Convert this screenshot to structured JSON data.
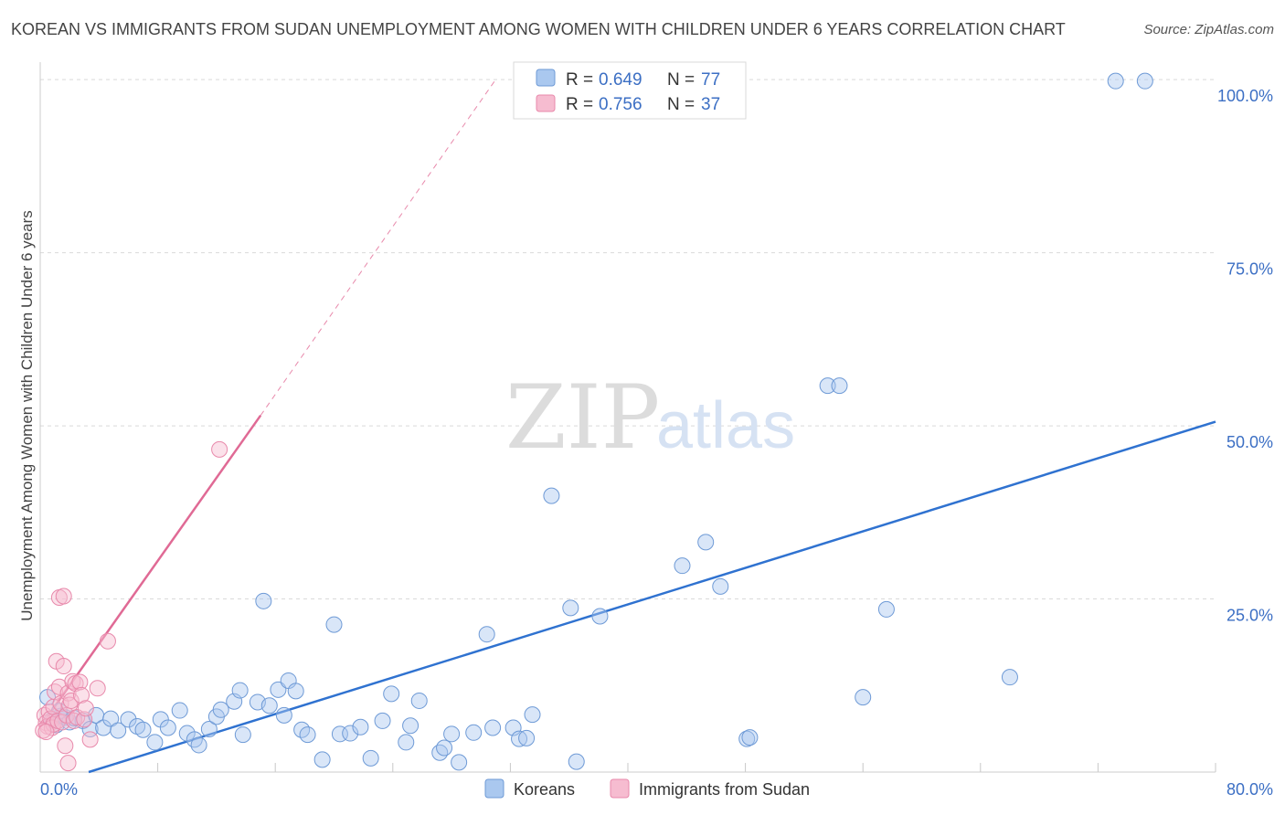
{
  "title": "KOREAN VS IMMIGRANTS FROM SUDAN UNEMPLOYMENT AMONG WOMEN WITH CHILDREN UNDER 6 YEARS CORRELATION CHART",
  "source": "Source: ZipAtlas.com",
  "watermark": {
    "zip": "ZIP",
    "atlas": "atlas"
  },
  "colors": {
    "korean_fill": "#aac8ef",
    "korean_stroke": "#6e9ad6",
    "korean_line": "#2f72d0",
    "sudan_fill": "#f6bcd0",
    "sudan_stroke": "#e889ab",
    "sudan_line": "#e06a95",
    "tick": "#3c6fc4",
    "grid": "#d9d9d9"
  },
  "legend": {
    "rows": [
      {
        "r_label": "R = ",
        "r_value": "0.649",
        "n_label": "N = ",
        "n_value": "77"
      },
      {
        "r_label": "R = ",
        "r_value": "0.756",
        "n_label": "N = ",
        "n_value": "37"
      }
    ],
    "bottom": [
      "Koreans",
      "Immigrants from Sudan"
    ]
  },
  "chart_data": {
    "type": "scatter",
    "title": "KOREAN VS IMMIGRANTS FROM SUDAN UNEMPLOYMENT AMONG WOMEN WITH CHILDREN UNDER 6 YEARS CORRELATION CHART",
    "xlabel": "",
    "ylabel": "Unemployment Among Women with Children Under 6 years",
    "xlim": [
      0,
      80
    ],
    "ylim": [
      0,
      102
    ],
    "x_tick_labels": [
      "0.0%",
      "80.0%"
    ],
    "y_ticks": [
      25,
      50,
      75,
      100
    ],
    "y_tick_labels": [
      "25.0%",
      "50.0%",
      "75.0%",
      "100.0%"
    ],
    "grid": true,
    "legend_position": "top-center",
    "series": [
      {
        "name": "Koreans",
        "r": 0.649,
        "n": 77,
        "trend": {
          "x": [
            3.3,
            80
          ],
          "y": [
            0,
            50.6
          ]
        },
        "points": [
          [
            0.5,
            10.8
          ],
          [
            0.8,
            7.5
          ],
          [
            1.1,
            6.8
          ],
          [
            1.4,
            8.1
          ],
          [
            1.7,
            7.9
          ],
          [
            2.0,
            7.2
          ],
          [
            2.3,
            7.8
          ],
          [
            2.9,
            7.4
          ],
          [
            3.4,
            6.2
          ],
          [
            3.8,
            8.2
          ],
          [
            4.3,
            6.4
          ],
          [
            4.8,
            7.7
          ],
          [
            5.3,
            6.0
          ],
          [
            6.0,
            7.6
          ],
          [
            6.6,
            6.6
          ],
          [
            7.0,
            6.1
          ],
          [
            7.8,
            4.3
          ],
          [
            8.2,
            7.6
          ],
          [
            8.7,
            6.4
          ],
          [
            9.5,
            8.9
          ],
          [
            10.0,
            5.6
          ],
          [
            10.5,
            4.7
          ],
          [
            10.8,
            3.9
          ],
          [
            11.5,
            6.2
          ],
          [
            12.0,
            8.0
          ],
          [
            12.3,
            9.0
          ],
          [
            13.2,
            10.2
          ],
          [
            13.6,
            11.8
          ],
          [
            13.8,
            5.4
          ],
          [
            14.8,
            10.1
          ],
          [
            15.2,
            24.7
          ],
          [
            15.6,
            9.6
          ],
          [
            16.2,
            11.9
          ],
          [
            16.6,
            8.2
          ],
          [
            16.9,
            13.2
          ],
          [
            17.4,
            11.7
          ],
          [
            17.8,
            6.1
          ],
          [
            18.2,
            5.4
          ],
          [
            19.2,
            1.8
          ],
          [
            20.0,
            21.3
          ],
          [
            20.4,
            5.5
          ],
          [
            21.1,
            5.6
          ],
          [
            21.8,
            6.5
          ],
          [
            22.5,
            2.0
          ],
          [
            23.3,
            7.4
          ],
          [
            23.9,
            11.3
          ],
          [
            24.9,
            4.3
          ],
          [
            25.2,
            6.7
          ],
          [
            25.8,
            10.3
          ],
          [
            27.2,
            2.8
          ],
          [
            27.5,
            3.5
          ],
          [
            28.0,
            5.5
          ],
          [
            28.5,
            1.4
          ],
          [
            29.5,
            5.7
          ],
          [
            30.4,
            19.9
          ],
          [
            30.8,
            6.4
          ],
          [
            32.2,
            6.4
          ],
          [
            32.6,
            4.8
          ],
          [
            33.1,
            4.9
          ],
          [
            33.5,
            8.3
          ],
          [
            34.8,
            39.9
          ],
          [
            36.1,
            23.7
          ],
          [
            36.5,
            1.5
          ],
          [
            38.1,
            22.5
          ],
          [
            43.7,
            29.8
          ],
          [
            45.3,
            33.2
          ],
          [
            46.3,
            26.8
          ],
          [
            48.1,
            4.8
          ],
          [
            48.3,
            5.0
          ],
          [
            53.6,
            55.8
          ],
          [
            54.4,
            55.8
          ],
          [
            56.0,
            10.8
          ],
          [
            57.6,
            23.5
          ],
          [
            66.0,
            13.7
          ],
          [
            73.2,
            99.8
          ],
          [
            75.2,
            99.8
          ],
          [
            1.3,
            8.8
          ]
        ]
      },
      {
        "name": "Immigrants from Sudan",
        "r": 0.756,
        "n": 37,
        "trend": {
          "x": [
            0,
            15
          ],
          "y": [
            6.5,
            51.5
          ]
        },
        "trend_extended": {
          "x": [
            15,
            31
          ],
          "y": [
            51.5,
            100
          ]
        },
        "points": [
          [
            0.3,
            8.2
          ],
          [
            0.4,
            7.1
          ],
          [
            0.5,
            6.6
          ],
          [
            0.6,
            8.7
          ],
          [
            0.7,
            7.7
          ],
          [
            0.8,
            6.4
          ],
          [
            0.9,
            9.4
          ],
          [
            0.9,
            6.9
          ],
          [
            1.0,
            11.6
          ],
          [
            1.1,
            16.0
          ],
          [
            1.2,
            7.4
          ],
          [
            1.3,
            12.3
          ],
          [
            1.3,
            25.2
          ],
          [
            1.4,
            9.9
          ],
          [
            1.5,
            7.2
          ],
          [
            1.6,
            15.3
          ],
          [
            1.6,
            25.4
          ],
          [
            1.7,
            3.8
          ],
          [
            1.8,
            8.2
          ],
          [
            1.9,
            11.4
          ],
          [
            1.9,
            1.3
          ],
          [
            2.0,
            9.7
          ],
          [
            2.1,
            10.3
          ],
          [
            2.2,
            13.1
          ],
          [
            2.3,
            7.4
          ],
          [
            2.4,
            12.8
          ],
          [
            2.5,
            7.9
          ],
          [
            2.7,
            13.0
          ],
          [
            2.8,
            11.1
          ],
          [
            3.0,
            7.6
          ],
          [
            3.1,
            9.2
          ],
          [
            3.4,
            4.7
          ],
          [
            3.9,
            12.1
          ],
          [
            4.6,
            18.9
          ],
          [
            12.2,
            46.6
          ],
          [
            0.2,
            6.0
          ],
          [
            0.4,
            5.8
          ]
        ]
      }
    ]
  }
}
